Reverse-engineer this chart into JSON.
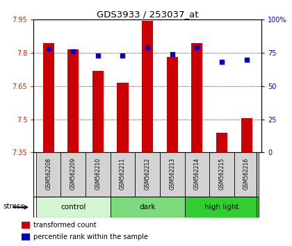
{
  "title": "GDS3933 / 253037_at",
  "samples": [
    "GSM562208",
    "GSM562209",
    "GSM562210",
    "GSM562211",
    "GSM562212",
    "GSM562213",
    "GSM562214",
    "GSM562215",
    "GSM562216"
  ],
  "transformed_counts": [
    7.845,
    7.815,
    7.72,
    7.665,
    7.945,
    7.78,
    7.845,
    7.44,
    7.505
  ],
  "percentile_ranks": [
    78,
    76,
    73,
    73,
    79,
    74,
    79,
    68,
    70
  ],
  "ylim_left": [
    7.35,
    7.95
  ],
  "ylim_right": [
    0,
    100
  ],
  "yticks_left": [
    7.35,
    7.5,
    7.65,
    7.8,
    7.95
  ],
  "yticks_right": [
    0,
    25,
    50,
    75,
    100
  ],
  "ytick_labels_left": [
    "7.35",
    "7.5",
    "7.65",
    "7.8",
    "7.95"
  ],
  "ytick_labels_right": [
    "0",
    "25",
    "50",
    "75",
    "100%"
  ],
  "groups": [
    {
      "label": "control",
      "indices": [
        0,
        1,
        2
      ],
      "color": "#d4f5d4"
    },
    {
      "label": "dark",
      "indices": [
        3,
        4,
        5
      ],
      "color": "#7dda7d"
    },
    {
      "label": "high light",
      "indices": [
        6,
        7,
        8
      ],
      "color": "#32cd32"
    }
  ],
  "bar_color": "#cc0000",
  "dot_color": "#0000cc",
  "bar_width": 0.45,
  "background_color": "#ffffff",
  "plot_bg_color": "#ffffff",
  "stress_label": "stress",
  "legend_tc": "transformed count",
  "legend_pr": "percentile rank within the sample",
  "left_tick_color": "#cc2200",
  "right_tick_color": "#0000cc",
  "base_value": 7.35,
  "sample_box_color": "#d3d3d3"
}
